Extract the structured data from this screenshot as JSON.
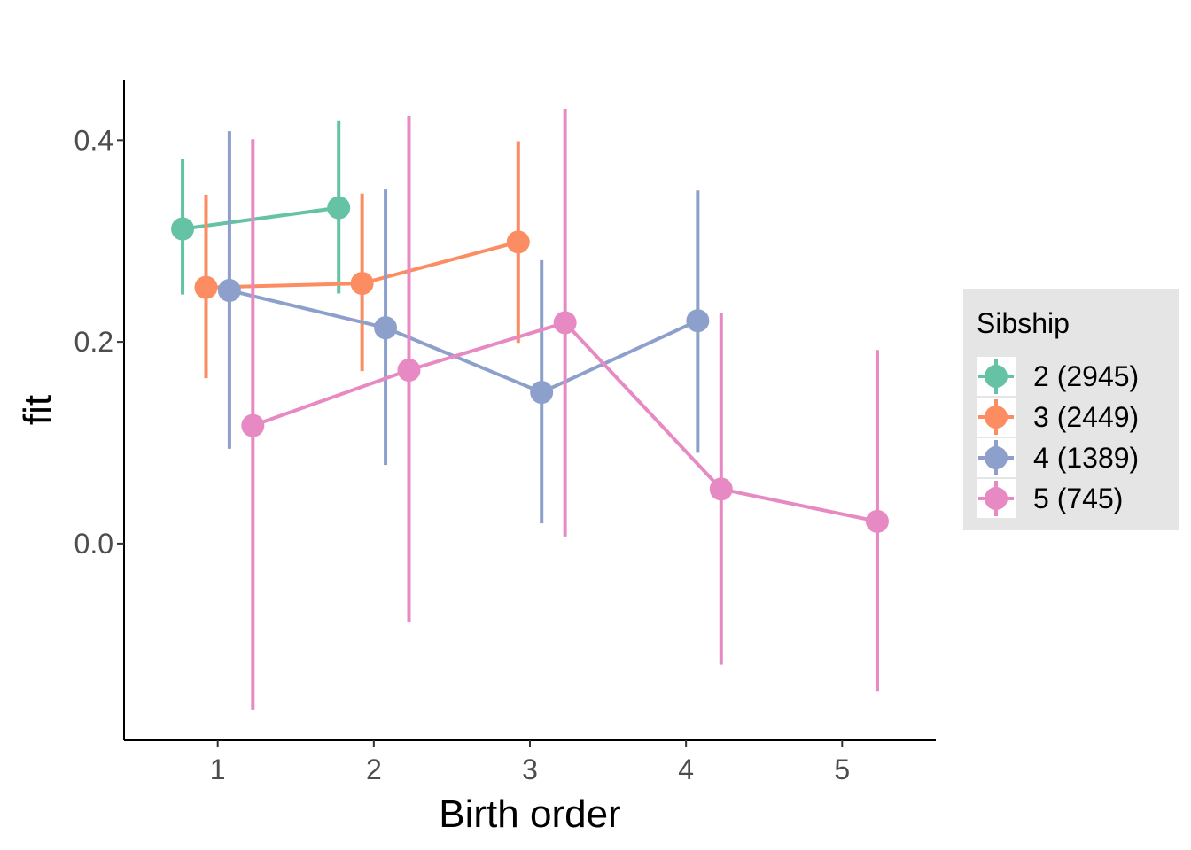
{
  "chart_data": {
    "type": "line",
    "xlabel": "Birth order",
    "ylabel": "fit",
    "xlim": [
      0.4,
      5.6
    ],
    "ylim": [
      -0.195,
      0.46
    ],
    "x_ticks": [
      1,
      2,
      3,
      4,
      5
    ],
    "y_ticks": [
      0.0,
      0.2,
      0.4
    ],
    "y_tick_labels": [
      "0.0",
      "0.2",
      "0.4"
    ],
    "dodge": 0.6,
    "grid": false,
    "legend": {
      "title": "Sibship",
      "position": "right"
    },
    "series": [
      {
        "name": "2 (2945)",
        "color": "#66C2A5",
        "x": [
          1,
          2
        ],
        "y": [
          0.312,
          0.333
        ],
        "lower": [
          0.247,
          0.248
        ],
        "upper": [
          0.381,
          0.419
        ]
      },
      {
        "name": "3 (2449)",
        "color": "#FC8D62",
        "x": [
          1,
          2,
          3
        ],
        "y": [
          0.254,
          0.258,
          0.299
        ],
        "lower": [
          0.164,
          0.171,
          0.199
        ],
        "upper": [
          0.346,
          0.347,
          0.399
        ]
      },
      {
        "name": "4 (1389)",
        "color": "#8DA0CB",
        "x": [
          1,
          2,
          3,
          4
        ],
        "y": [
          0.251,
          0.214,
          0.15,
          0.221
        ],
        "lower": [
          0.094,
          0.078,
          0.02,
          0.09
        ],
        "upper": [
          0.409,
          0.351,
          0.281,
          0.35
        ]
      },
      {
        "name": "5 (745)",
        "color": "#E78AC3",
        "x": [
          1,
          2,
          3,
          4,
          5
        ],
        "y": [
          0.117,
          0.172,
          0.219,
          0.054,
          0.022
        ],
        "lower": [
          -0.165,
          -0.078,
          0.007,
          -0.12,
          -0.146
        ],
        "upper": [
          0.401,
          0.424,
          0.431,
          0.229,
          0.192
        ]
      }
    ]
  }
}
